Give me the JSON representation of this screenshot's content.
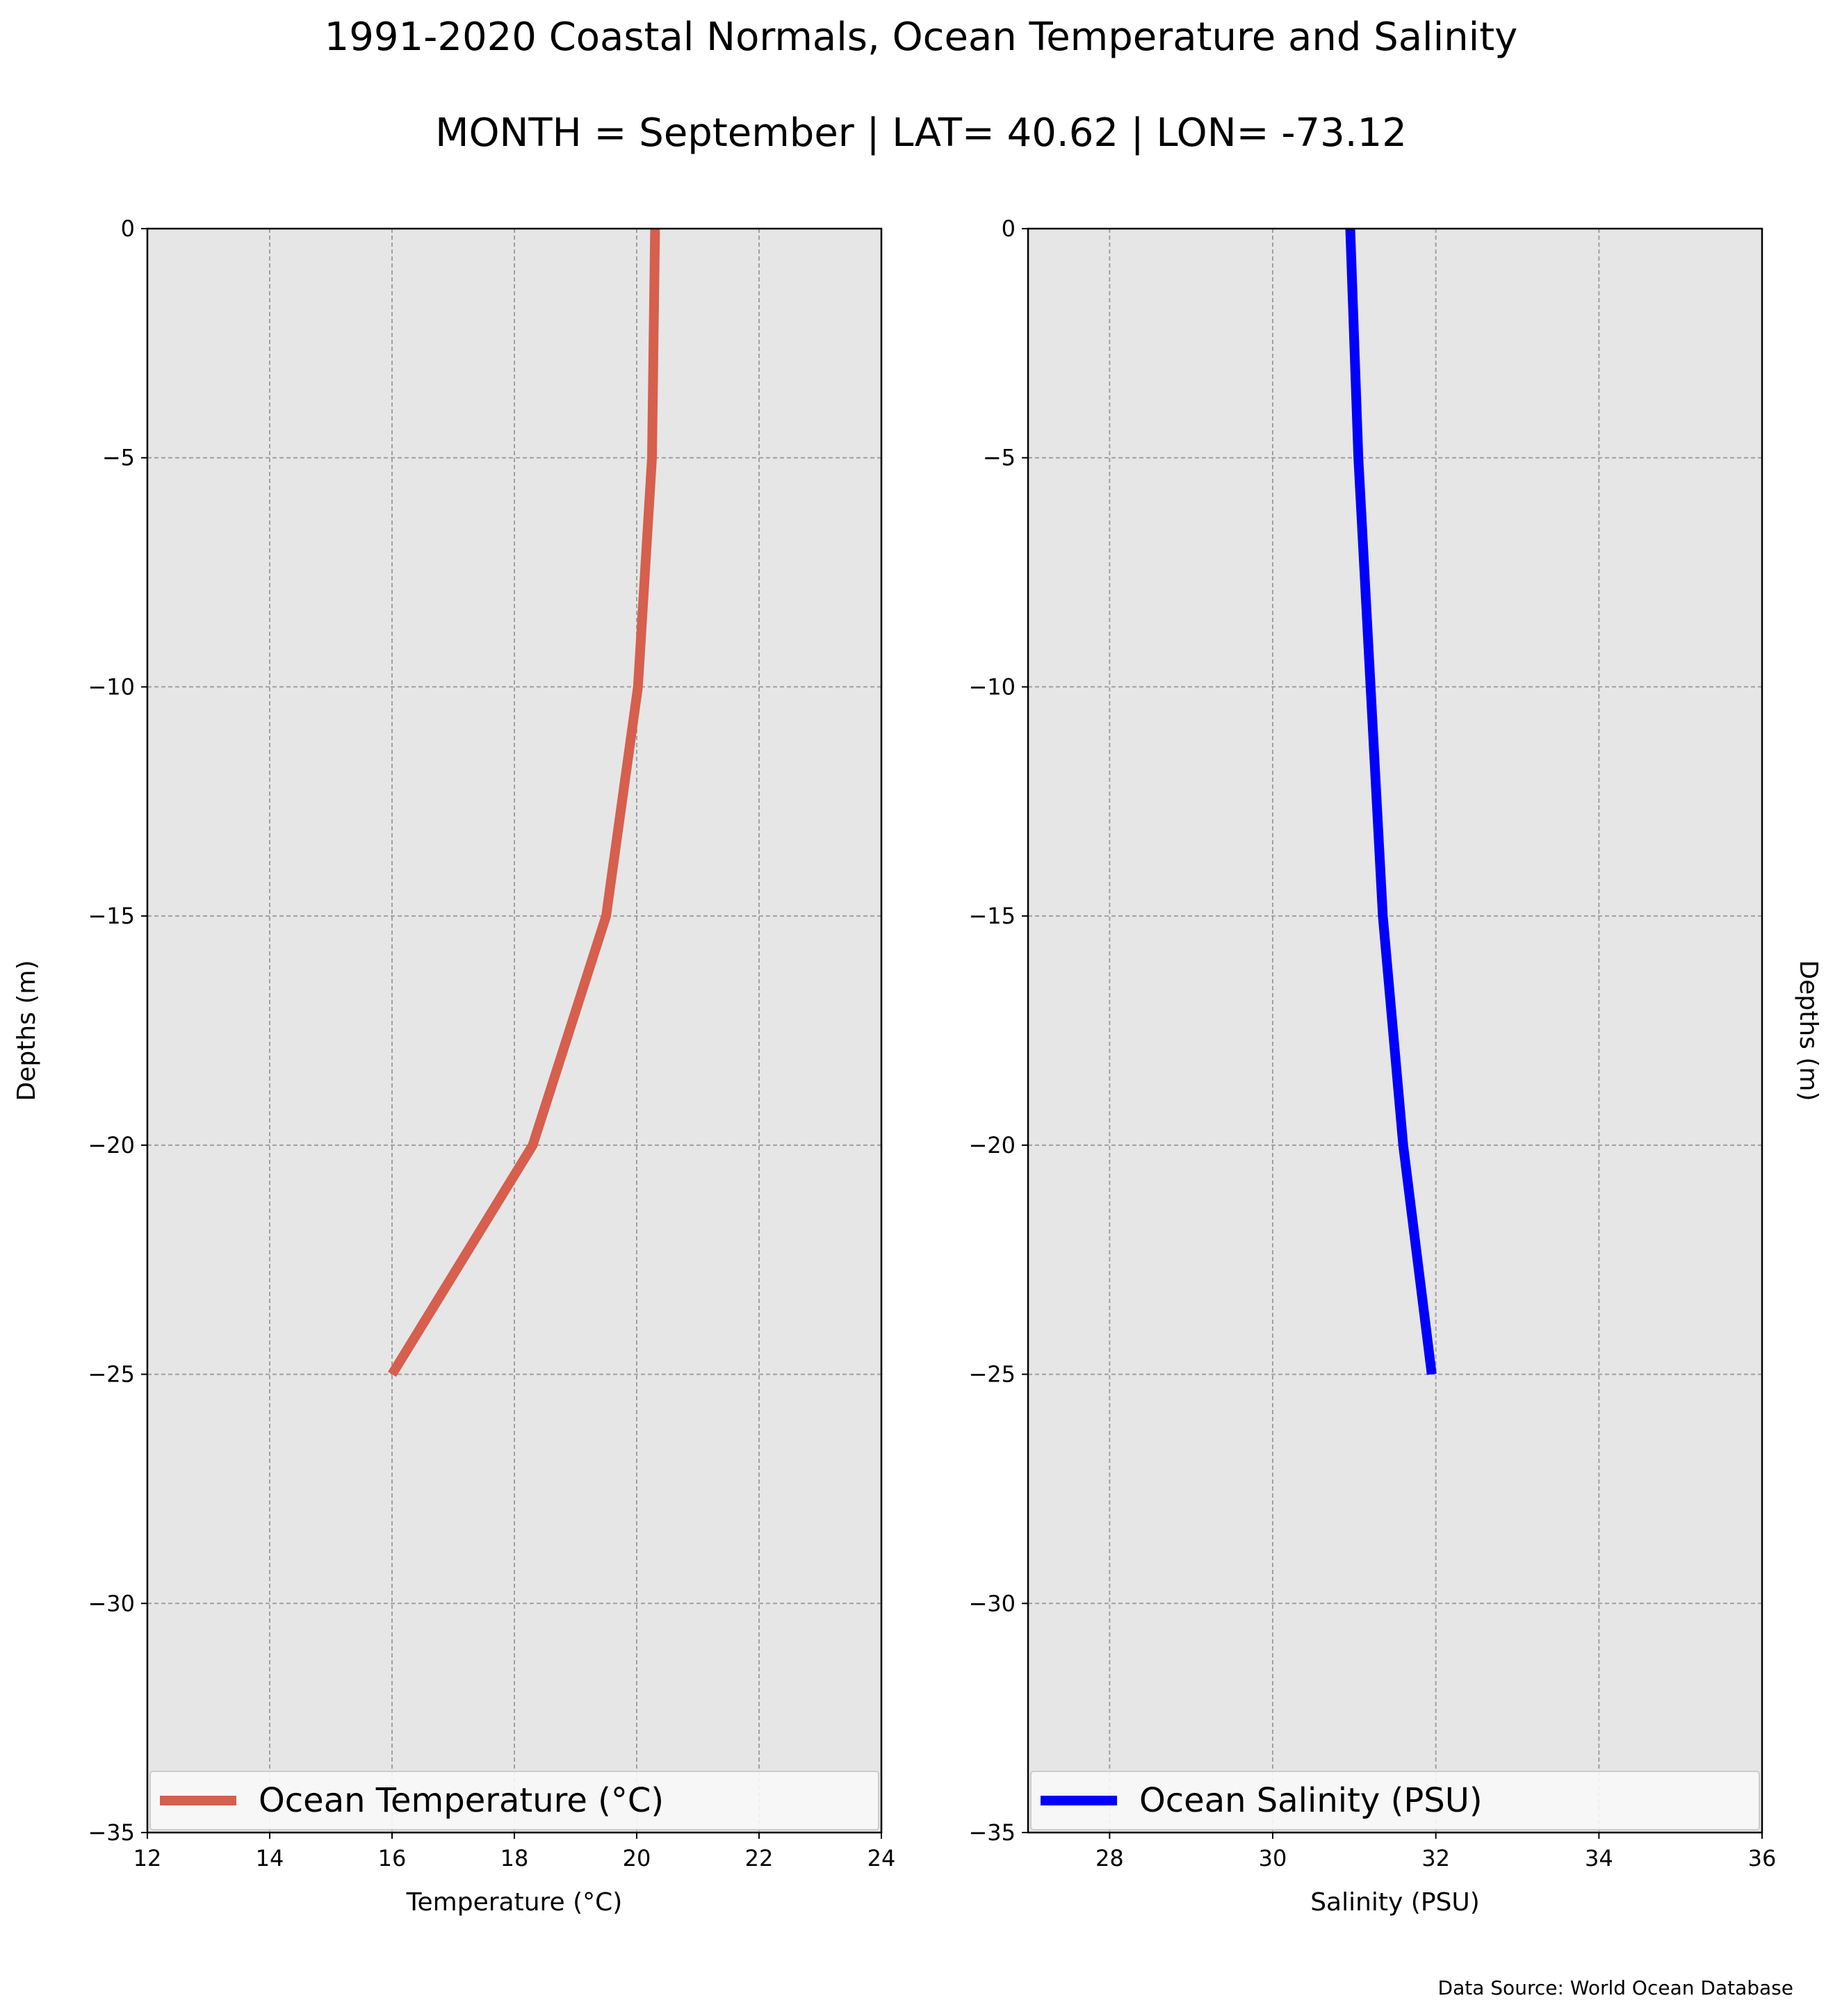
{
  "title": "1991-2020 Coastal Normals, Ocean Temperature and Salinity",
  "subtitle": "MONTH = September | LAT= 40.62 | LON= -73.12",
  "footer": "Data Source: World Ocean Database",
  "chart_data": [
    {
      "type": "line",
      "xlabel": "Temperature ($^\\circ$C)",
      "xlabel_display": "Temperature (°C)",
      "ylabel": "Depths (m)",
      "xlim": [
        12,
        24
      ],
      "ylim": [
        -35,
        0
      ],
      "xticks": [
        12,
        14,
        16,
        18,
        20,
        22,
        24
      ],
      "yticks": [
        0,
        -5,
        -10,
        -15,
        -20,
        -25,
        -30,
        -35
      ],
      "grid": true,
      "legend_position": "bottom",
      "series": [
        {
          "name": "Ocean Temperature (°C)",
          "color": "#d65f4e",
          "x": [
            20.3,
            20.25,
            20.02,
            19.5,
            18.3,
            16.0
          ],
          "y": [
            0,
            -5,
            -10,
            -15,
            -20,
            -25
          ]
        }
      ]
    },
    {
      "type": "line",
      "xlabel": "Salinity (PSU)",
      "ylabel": "Depths (m)",
      "xlim": [
        27,
        36
      ],
      "ylim": [
        -35,
        0
      ],
      "xticks": [
        28,
        30,
        32,
        34,
        36
      ],
      "yticks": [
        0,
        -5,
        -10,
        -15,
        -20,
        -25,
        -30,
        -35
      ],
      "grid": true,
      "legend_position": "bottom",
      "series": [
        {
          "name": "Ocean Salinity (PSU)",
          "color": "#0000ff",
          "x": [
            30.95,
            31.05,
            31.2,
            31.35,
            31.6,
            31.95
          ],
          "y": [
            0,
            -5,
            -10,
            -15,
            -20,
            -25
          ]
        }
      ]
    }
  ],
  "colors": {
    "plot_bg": "#e6e6e6",
    "grid": "#a0a0a0",
    "axis": "#000000"
  }
}
